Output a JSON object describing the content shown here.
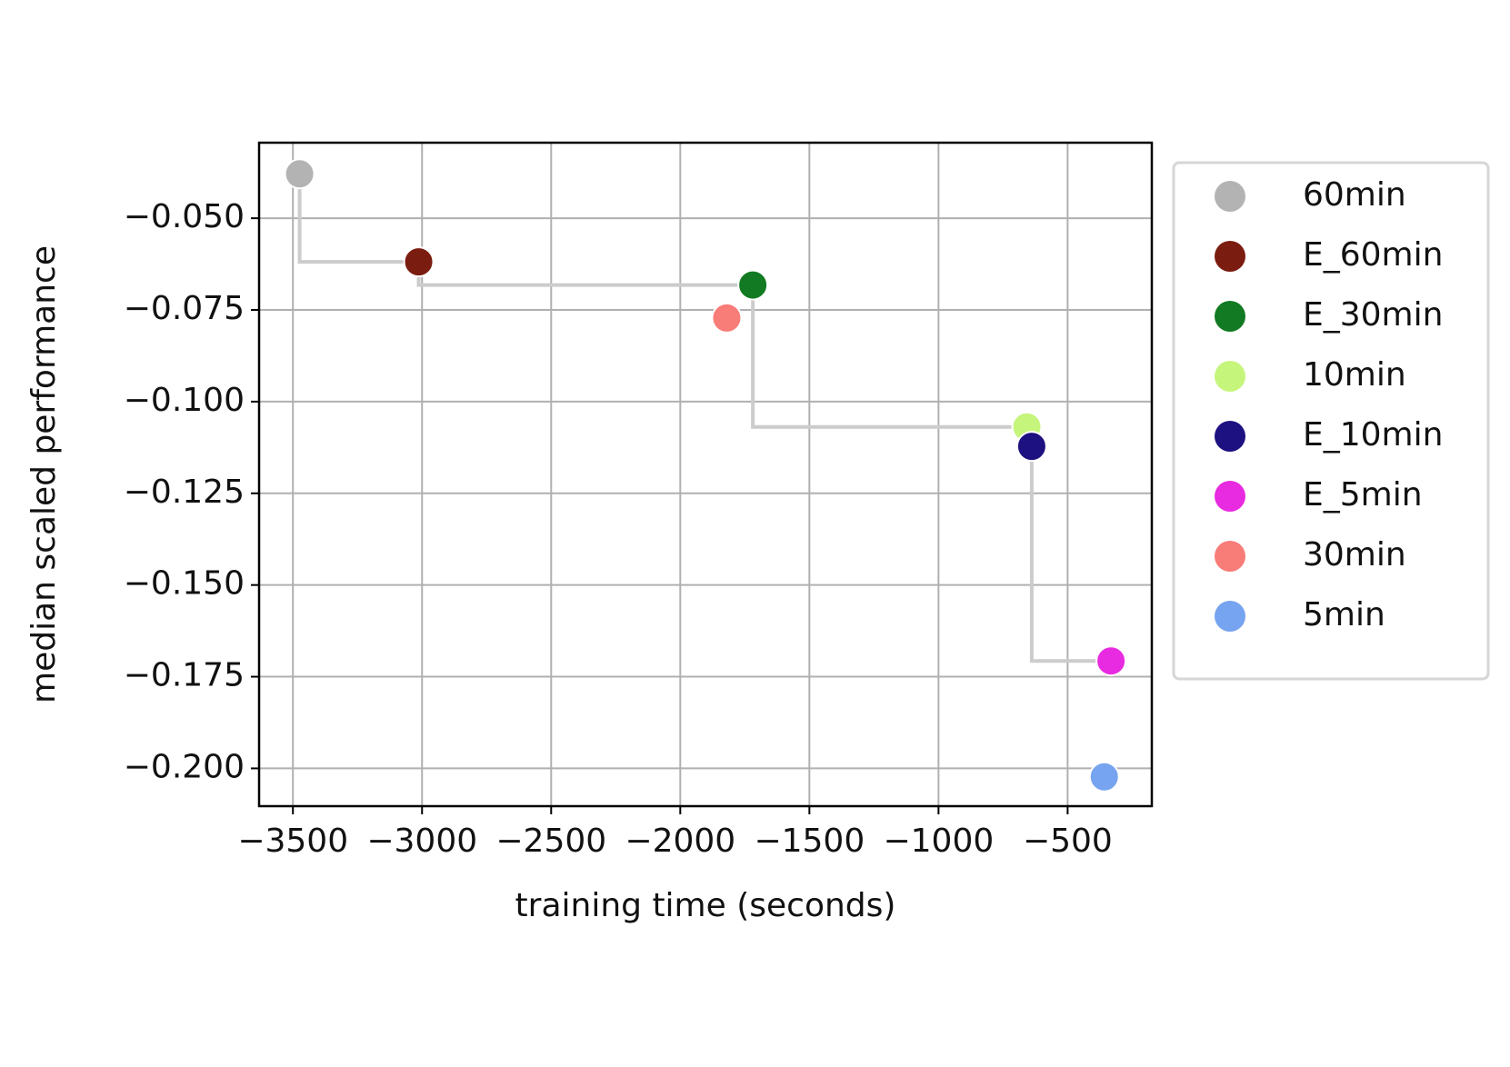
{
  "chart_data": {
    "type": "scatter",
    "x_label": "training time (seconds)",
    "y_label": "median scaled performance",
    "xlim": [
      -3631,
      -174
    ],
    "ylim": [
      -0.2103,
      -0.0294
    ],
    "xticks": [
      {
        "value": -3500,
        "label": "−3500"
      },
      {
        "value": -3000,
        "label": "−3000"
      },
      {
        "value": -2500,
        "label": "−2500"
      },
      {
        "value": -2000,
        "label": "−2000"
      },
      {
        "value": -1500,
        "label": "−1500"
      },
      {
        "value": -1000,
        "label": "−1000"
      },
      {
        "value": -500,
        "label": "−500"
      }
    ],
    "yticks": [
      {
        "value": -0.05,
        "label": "−0.050"
      },
      {
        "value": -0.075,
        "label": "−0.075"
      },
      {
        "value": -0.1,
        "label": "−0.100"
      },
      {
        "value": -0.125,
        "label": "−0.125"
      },
      {
        "value": -0.15,
        "label": "−0.150"
      },
      {
        "value": -0.175,
        "label": "−0.175"
      },
      {
        "value": -0.2,
        "label": "−0.200"
      }
    ],
    "grid": true,
    "legend": "outside-right",
    "frontier_color": "#cccccc",
    "series": [
      {
        "name": "60min",
        "color": "#b3b3b3",
        "frontier": true,
        "x": [
          -3474
        ],
        "values": [
          -0.0379
        ]
      },
      {
        "name": "E_60min",
        "color": "#7b1c10",
        "frontier": true,
        "x": [
          -3013
        ],
        "values": [
          -0.0619
        ]
      },
      {
        "name": "E_30min",
        "color": "#127a22",
        "frontier": true,
        "x": [
          -1719
        ],
        "values": [
          -0.0682
        ]
      },
      {
        "name": "10min",
        "color": "#c6f57c",
        "frontier": true,
        "x": [
          -658
        ],
        "values": [
          -0.1069
        ]
      },
      {
        "name": "E_10min",
        "color": "#1d1080",
        "frontier": true,
        "x": [
          -639
        ],
        "values": [
          -0.1122
        ]
      },
      {
        "name": "E_5min",
        "color": "#e82ae0",
        "frontier": true,
        "x": [
          -332
        ],
        "values": [
          -0.1707
        ]
      },
      {
        "name": "30min",
        "color": "#f87c78",
        "frontier": false,
        "x": [
          -1820
        ],
        "values": [
          -0.0772
        ]
      },
      {
        "name": "5min",
        "color": "#77a4f0",
        "frontier": false,
        "x": [
          -358
        ],
        "values": [
          -0.2023
        ]
      }
    ]
  }
}
